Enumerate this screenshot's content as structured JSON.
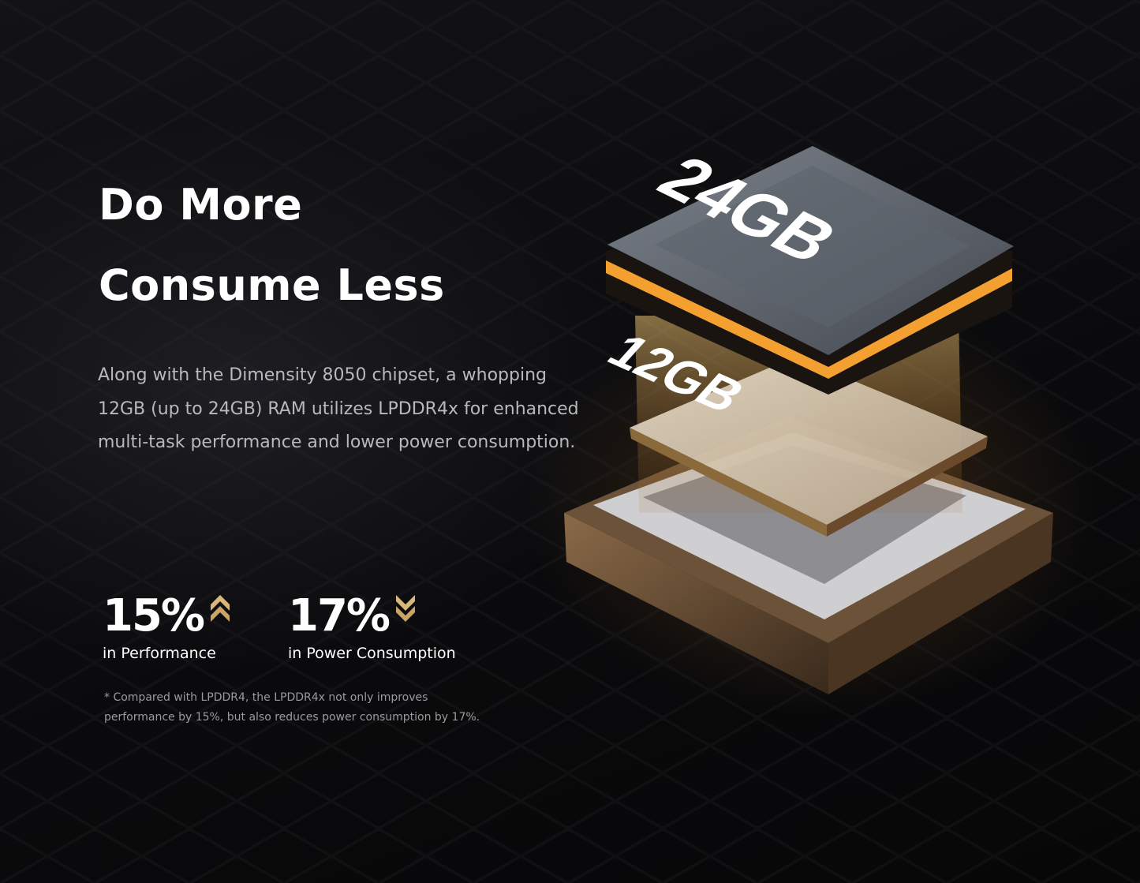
{
  "heading": {
    "line1": "Do More",
    "line2": "Consume Less"
  },
  "description": "Along with the Dimensity 8050 chipset, a whopping 12GB (up to 24GB) RAM utilizes LPDDR4x for enhanced multi-task performance and lower power consumption.",
  "stats": [
    {
      "value": "15%",
      "label": "in Performance",
      "icon": "double-chevron-up-icon"
    },
    {
      "value": "17%",
      "label": "in Power Consumption",
      "icon": "double-chevron-down-icon"
    }
  ],
  "footnote": {
    "line1": "* Compared with LPDDR4, the LPDDR4x not only improves",
    "line2": "performance by 15%, but also reduces power consumption by 17%."
  },
  "illustration": {
    "top_chip_label": "24GB",
    "middle_chip_label": "12GB"
  },
  "colors": {
    "accent_gold": "#d9b77a",
    "background": "#0b0b0d",
    "glow": "#f0a030"
  }
}
